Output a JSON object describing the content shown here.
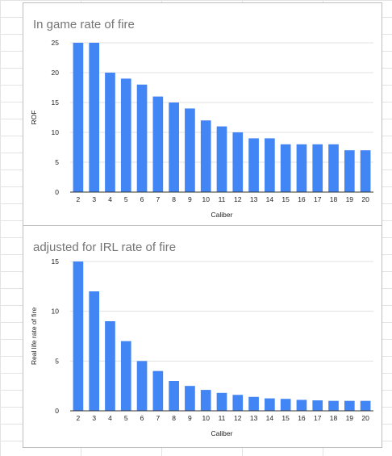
{
  "chart_data": [
    {
      "type": "bar",
      "title": "In game rate of fire",
      "xlabel": "Caliber",
      "ylabel": "ROF",
      "categories": [
        "2",
        "3",
        "4",
        "5",
        "6",
        "7",
        "8",
        "9",
        "10",
        "11",
        "12",
        "13",
        "14",
        "15",
        "16",
        "17",
        "18",
        "19",
        "20"
      ],
      "values": [
        25,
        25,
        20,
        19,
        18,
        16,
        15,
        14,
        12,
        11,
        10,
        9,
        9,
        8,
        8,
        8,
        8,
        7,
        7
      ],
      "ylim": [
        0,
        25
      ],
      "yticks": [
        "0",
        "5",
        "10",
        "15",
        "20",
        "25"
      ],
      "grid": true,
      "legend": "none"
    },
    {
      "type": "bar",
      "title": "adjusted for IRL rate of fire",
      "xlabel": "Caliber",
      "ylabel": "Real life rate of fire",
      "categories": [
        "2",
        "3",
        "4",
        "5",
        "6",
        "7",
        "8",
        "9",
        "10",
        "11",
        "12",
        "13",
        "14",
        "15",
        "16",
        "17",
        "18",
        "19",
        "20"
      ],
      "values": [
        15,
        12,
        9,
        7,
        5,
        4,
        3,
        2.5,
        2.1,
        1.8,
        1.6,
        1.4,
        1.25,
        1.2,
        1.1,
        1.05,
        1.0,
        1.0,
        1.0
      ],
      "ylim": [
        0,
        15
      ],
      "yticks": [
        "0",
        "5",
        "10",
        "15"
      ],
      "grid": true,
      "legend": "none"
    }
  ],
  "colors": {
    "bar": "#4285f4",
    "grid": "#e0e0e0",
    "axis": "#333333"
  }
}
